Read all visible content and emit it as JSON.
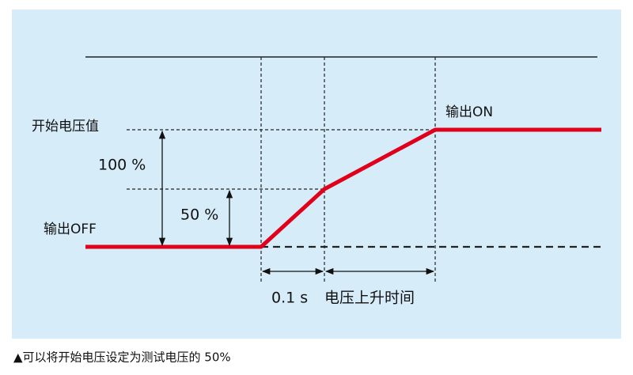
{
  "labels": {
    "start_voltage": "开始电压值",
    "full_percent": "100 %",
    "half_percent": "50 %",
    "output_off": "输出OFF",
    "output_on": "输出ON",
    "time_01": "0.1 s",
    "rise_time": "电压上升时间"
  },
  "caption": "▲可以将开始电压设定为测试电压的 50%"
}
